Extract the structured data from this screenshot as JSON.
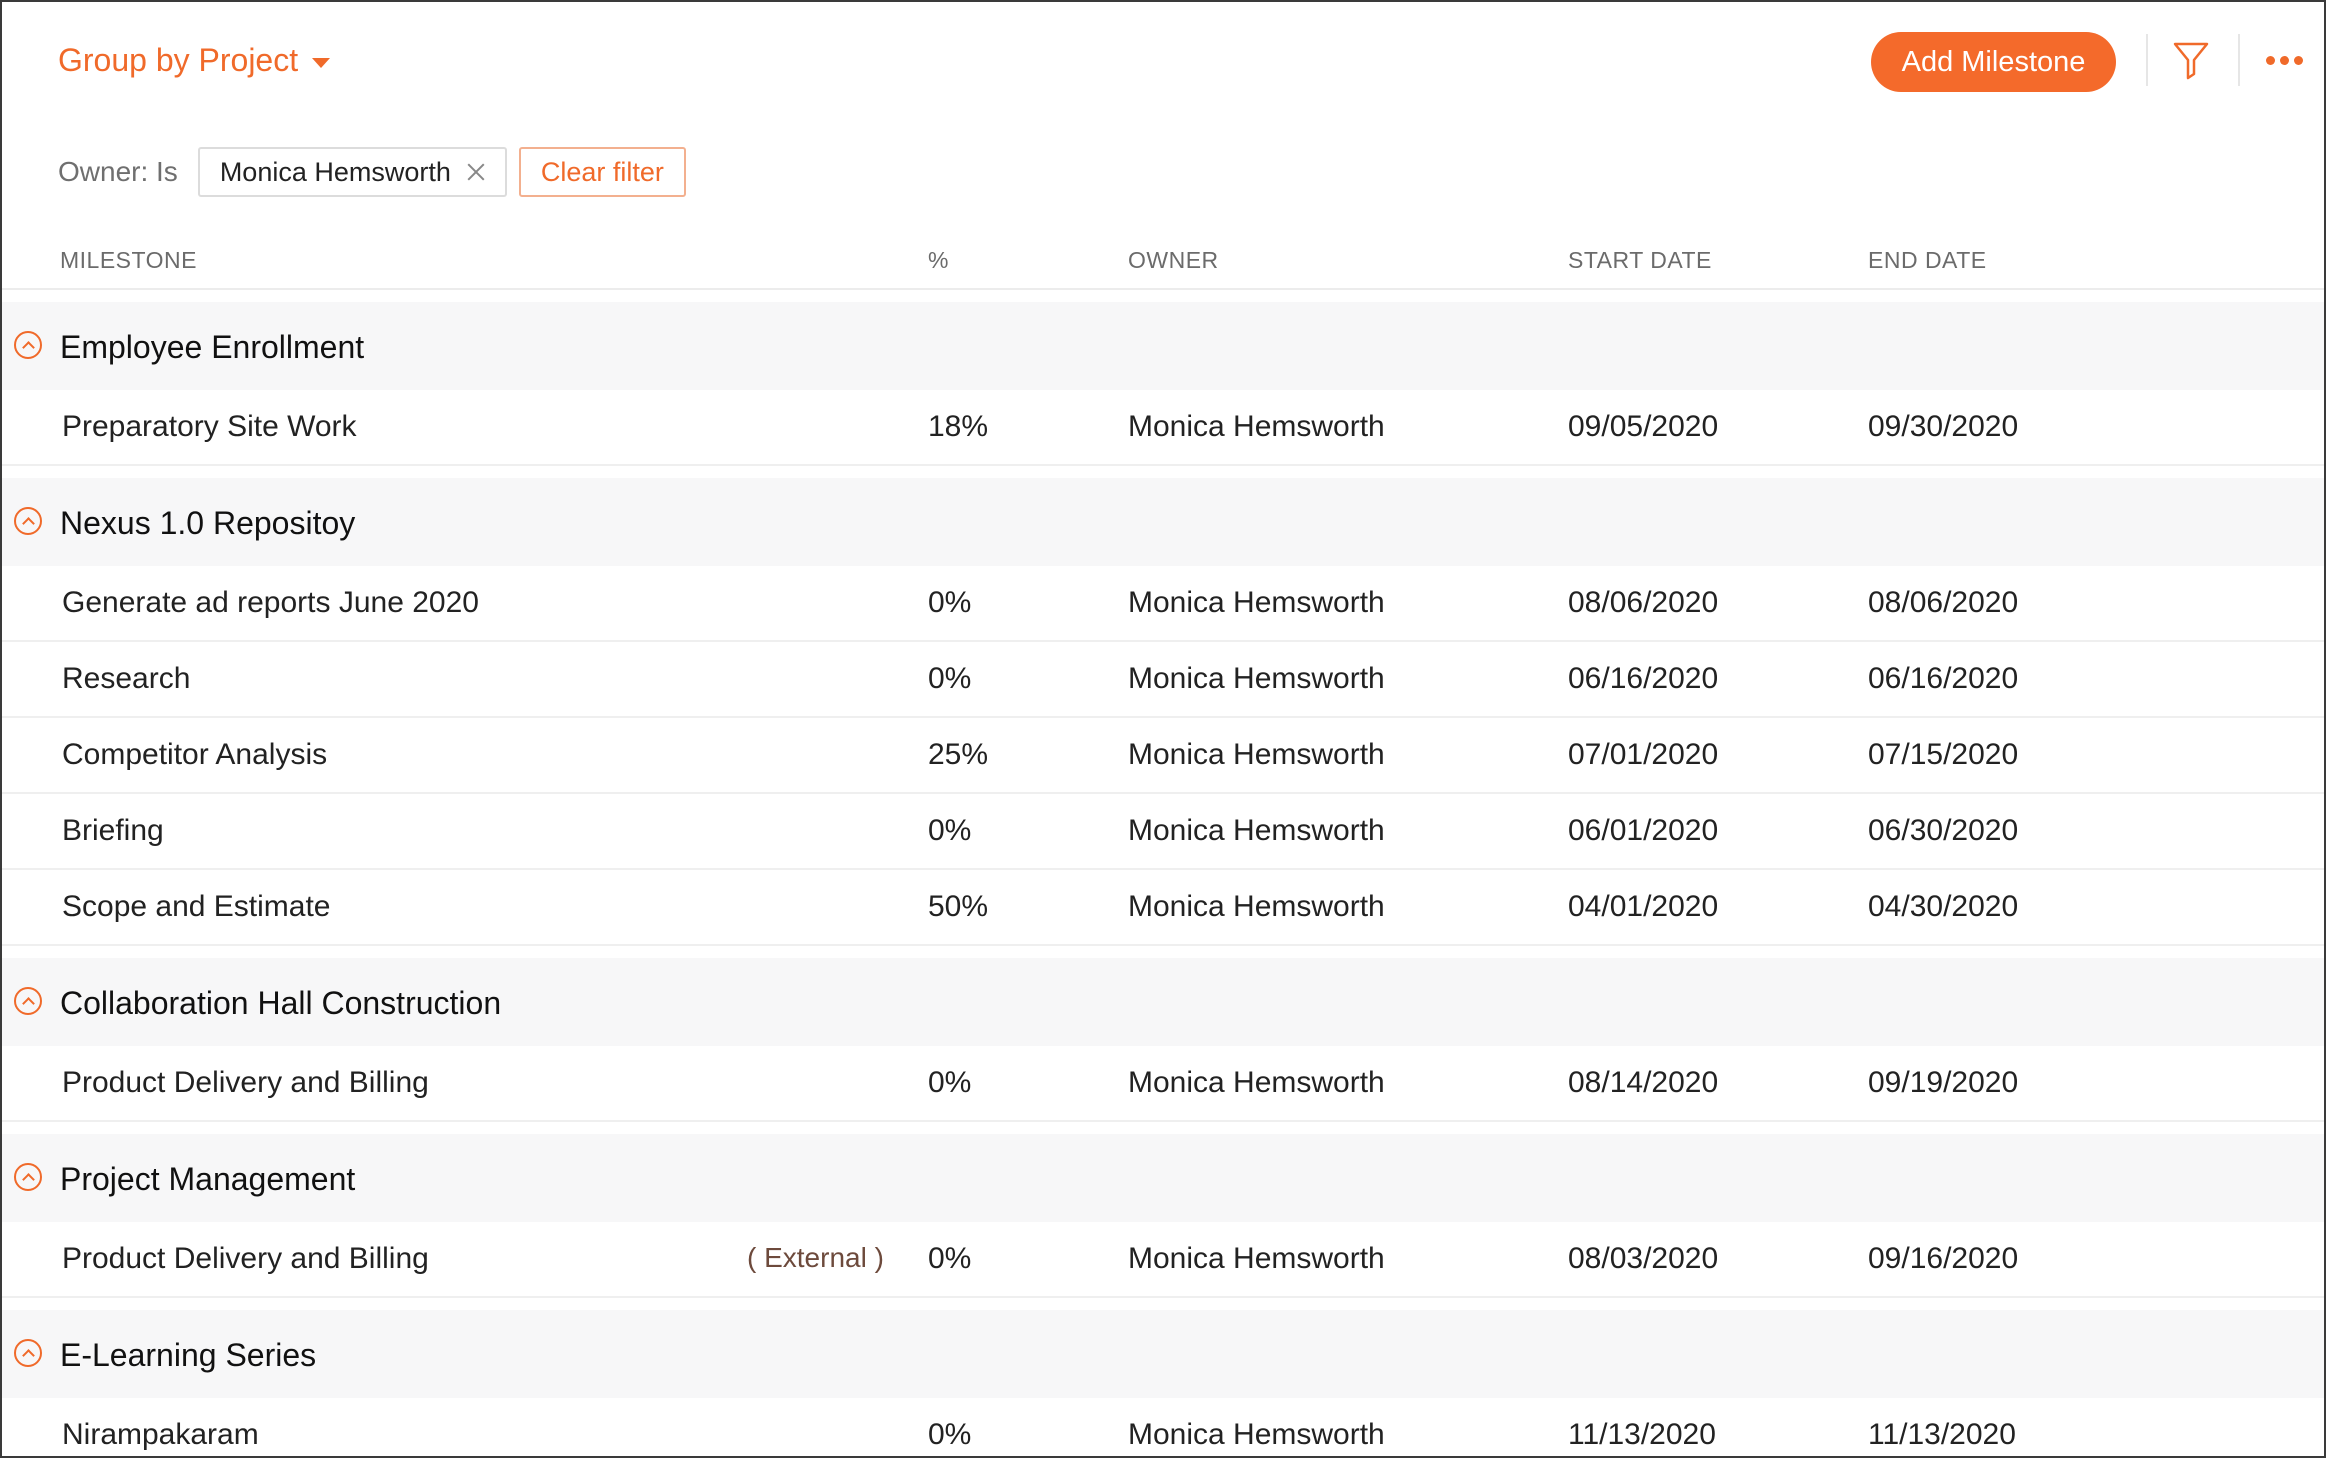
{
  "header": {
    "group_by_label": "Group by Project",
    "add_button_label": "Add Milestone",
    "filter_icon": "funnel-icon",
    "more_icon": "ellipsis-icon"
  },
  "filter": {
    "owner_label": "Owner: Is",
    "chip_value": "Monica Hemsworth",
    "clear_label": "Clear filter"
  },
  "columns": {
    "milestone": "MILESTONE",
    "percent": "%",
    "owner": "OWNER",
    "start": "START DATE",
    "end": "END DATE"
  },
  "groups": [
    {
      "title": "Employee Enrollment",
      "rows": [
        {
          "name": "Preparatory Site Work",
          "tag": "",
          "percent": "18%",
          "owner": "Monica Hemsworth",
          "start": "09/05/2020",
          "end": "09/30/2020"
        }
      ]
    },
    {
      "title": "Nexus 1.0 Repositoy",
      "rows": [
        {
          "name": "Generate ad reports June 2020",
          "tag": "",
          "percent": "0%",
          "owner": "Monica Hemsworth",
          "start": "08/06/2020",
          "end": "08/06/2020"
        },
        {
          "name": "Research",
          "tag": "",
          "percent": "0%",
          "owner": "Monica Hemsworth",
          "start": "06/16/2020",
          "end": "06/16/2020"
        },
        {
          "name": "Competitor Analysis",
          "tag": "",
          "percent": "25%",
          "owner": "Monica Hemsworth",
          "start": "07/01/2020",
          "end": "07/15/2020"
        },
        {
          "name": "Briefing",
          "tag": "",
          "percent": "0%",
          "owner": "Monica Hemsworth",
          "start": "06/01/2020",
          "end": "06/30/2020"
        },
        {
          "name": "Scope and Estimate",
          "tag": "",
          "percent": "50%",
          "owner": "Monica Hemsworth",
          "start": "04/01/2020",
          "end": "04/30/2020"
        }
      ]
    },
    {
      "title": "Collaboration Hall Construction",
      "rows": [
        {
          "name": "Product Delivery and Billing",
          "tag": "",
          "percent": "0%",
          "owner": "Monica Hemsworth",
          "start": "08/14/2020",
          "end": "09/19/2020"
        }
      ]
    },
    {
      "title": "Project Management",
      "rows": [
        {
          "name": "Product Delivery and Billing",
          "tag": "( External )",
          "percent": "0%",
          "owner": "Monica Hemsworth",
          "start": "08/03/2020",
          "end": "09/16/2020"
        }
      ]
    },
    {
      "title": "E-Learning Series",
      "rows": [
        {
          "name": "Nirampakaram",
          "tag": "",
          "percent": "0%",
          "owner": "Monica Hemsworth",
          "start": "11/13/2020",
          "end": "11/13/2020"
        }
      ]
    }
  ],
  "colors": {
    "accent": "#f06a2a",
    "group_bg": "#f7f7f8"
  }
}
